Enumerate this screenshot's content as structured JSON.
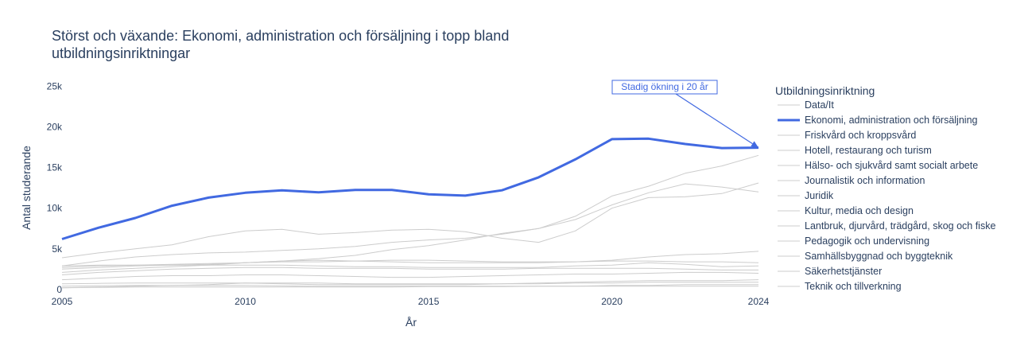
{
  "chart_data": {
    "type": "line",
    "title_line1": "Störst och växande: Ekonomi, administration och försäljning i topp bland",
    "title_line2": "utbildningsinriktningar",
    "xlabel": "År",
    "ylabel": "Antal studerande",
    "xlim": [
      2005,
      2024
    ],
    "ylim": [
      -500,
      27000
    ],
    "x_ticks": [
      2005,
      2010,
      2015,
      2020,
      2024
    ],
    "y_ticks": [
      {
        "value": 0,
        "label": "0"
      },
      {
        "value": 5000,
        "label": "5k"
      },
      {
        "value": 10000,
        "label": "10k"
      },
      {
        "value": 15000,
        "label": "15k"
      },
      {
        "value": 20000,
        "label": "20k"
      },
      {
        "value": 25000,
        "label": "25k"
      }
    ],
    "grid": false,
    "legend_title": "Utbildningsinriktning",
    "legend_position": "right",
    "highlight_color": "#4169e1",
    "muted_color": "#cccccc",
    "x": [
      2005,
      2006,
      2007,
      2008,
      2009,
      2010,
      2011,
      2012,
      2013,
      2014,
      2015,
      2016,
      2017,
      2018,
      2019,
      2020,
      2021,
      2022,
      2023,
      2024
    ],
    "series": [
      {
        "name": "Data/It",
        "highlight": false,
        "values": [
          2900,
          3500,
          4000,
          4300,
          4500,
          4600,
          4800,
          5000,
          5300,
          5800,
          6100,
          6300,
          6800,
          7500,
          9000,
          11500,
          12700,
          14300,
          15200,
          16500
        ]
      },
      {
        "name": "Ekonomi, administration och försäljning",
        "highlight": true,
        "values": [
          6200,
          7600,
          8800,
          10300,
          11300,
          11900,
          12200,
          11950,
          12250,
          12250,
          11700,
          11550,
          12200,
          13800,
          16000,
          18500,
          18550,
          17900,
          17400,
          17450
        ]
      },
      {
        "name": "Friskvård och kroppsvård",
        "highlight": false,
        "values": [
          1200,
          1400,
          1600,
          1700,
          1700,
          1800,
          1800,
          1700,
          1600,
          1500,
          1500,
          1600,
          1700,
          1800,
          1900,
          1900,
          2000,
          2100,
          2100,
          2000
        ]
      },
      {
        "name": "Hotell, restaurang och turism",
        "highlight": false,
        "values": [
          2900,
          3000,
          3000,
          3000,
          3000,
          3000,
          3000,
          2900,
          2800,
          2800,
          2700,
          2700,
          2700,
          2700,
          2900,
          3000,
          3300,
          3100,
          2800,
          2900
        ]
      },
      {
        "name": "Hälso- och sjukvård samt socialt arbete",
        "highlight": false,
        "values": [
          2100,
          2400,
          2600,
          2800,
          3000,
          3300,
          3500,
          3800,
          4200,
          4900,
          5400,
          6100,
          6900,
          7500,
          8600,
          10400,
          11900,
          13000,
          12600,
          12000
        ]
      },
      {
        "name": "Journalistik och information",
        "highlight": false,
        "values": [
          400,
          450,
          500,
          500,
          500,
          500,
          450,
          400,
          400,
          400,
          400,
          400,
          400,
          400,
          400,
          400,
          400,
          400,
          400,
          400
        ]
      },
      {
        "name": "Juridik",
        "highlight": false,
        "values": [
          200,
          300,
          400,
          500,
          600,
          800,
          700,
          600,
          600,
          600,
          600,
          600,
          700,
          800,
          900,
          1000,
          1100,
          1100,
          1100,
          1200
        ]
      },
      {
        "name": "Kultur, media och design",
        "highlight": false,
        "values": [
          1800,
          2100,
          2300,
          2500,
          2600,
          2700,
          2700,
          2600,
          2600,
          2600,
          2500,
          2500,
          2500,
          2600,
          2600,
          2600,
          2600,
          2500,
          2400,
          2400
        ]
      },
      {
        "name": "Lantbruk, djurvård, trädgård, skog och fiske",
        "highlight": false,
        "values": [
          700,
          750,
          800,
          800,
          800,
          800,
          800,
          800,
          700,
          700,
          700,
          700,
          700,
          700,
          800,
          800,
          900,
          900,
          900,
          900
        ]
      },
      {
        "name": "Pedagogik och undervisning",
        "highlight": false,
        "values": [
          3900,
          4500,
          5000,
          5500,
          6500,
          7200,
          7400,
          6800,
          7000,
          7300,
          7400,
          7100,
          6300,
          5800,
          7200,
          10000,
          11300,
          11400,
          11800,
          13100
        ]
      },
      {
        "name": "Samhällsbyggnad och byggteknik",
        "highlight": false,
        "values": [
          2500,
          2700,
          2900,
          3000,
          3100,
          3300,
          3500,
          3600,
          3500,
          3400,
          3300,
          3300,
          3300,
          3300,
          3400,
          3600,
          4000,
          4300,
          4400,
          4700
        ]
      },
      {
        "name": "Säkerhetstjänster",
        "highlight": false,
        "values": [
          200,
          250,
          300,
          300,
          300,
          300,
          300,
          300,
          300,
          300,
          350,
          350,
          350,
          400,
          400,
          500,
          500,
          600,
          600,
          600
        ]
      },
      {
        "name": "Teknik och tillverkning",
        "highlight": false,
        "values": [
          2700,
          2900,
          3000,
          3100,
          3200,
          3300,
          3400,
          3400,
          3500,
          3600,
          3600,
          3500,
          3400,
          3400,
          3400,
          3500,
          3500,
          3400,
          3400,
          3300
        ]
      }
    ],
    "annotation": {
      "text": "Stadig ökning i 20 år",
      "x": 2024,
      "y": 17450
    }
  }
}
